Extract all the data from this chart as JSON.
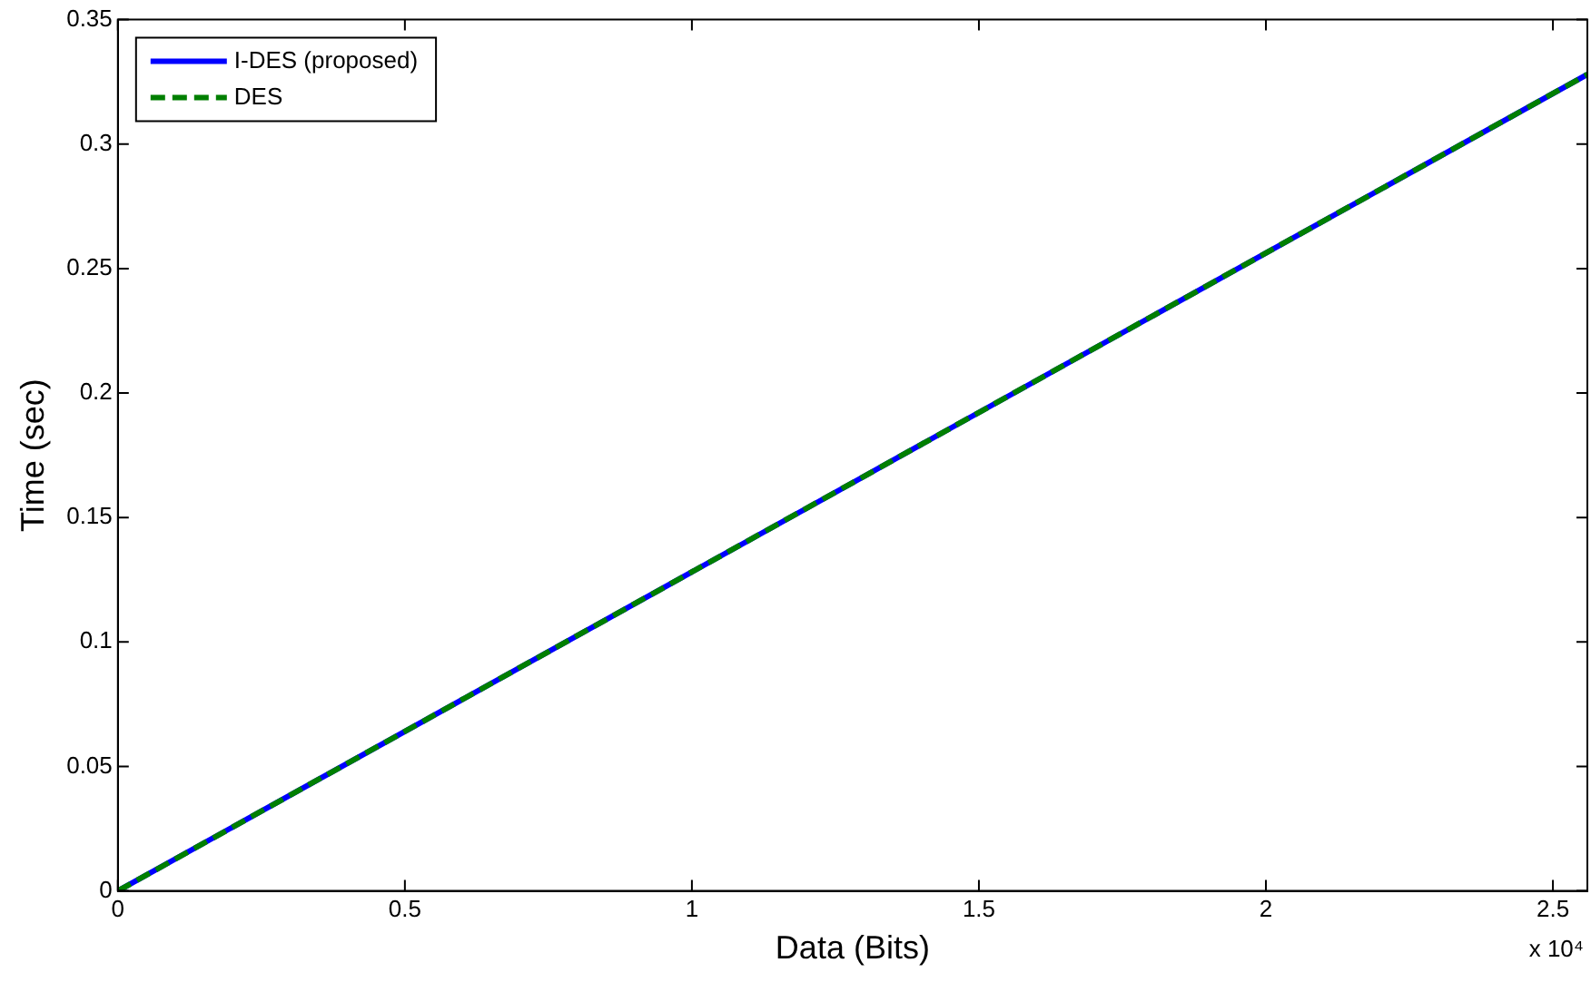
{
  "chart_data": {
    "type": "line",
    "xlabel": "Data (Bits)",
    "ylabel": "Time (sec)",
    "x": [
      0,
      1.28,
      2.56
    ],
    "series": [
      {
        "name": "I-DES (proposed)",
        "color": "#0000ff",
        "values": [
          0,
          0.164,
          0.328
        ],
        "line_style": "solid"
      },
      {
        "name": "DES",
        "color": "#007f00",
        "values": [
          0,
          0.164,
          0.328
        ],
        "line_style": "dashed"
      }
    ],
    "xlim": [
      0,
      2.56
    ],
    "xticks": [
      0,
      0.5,
      1,
      1.5,
      2,
      2.5
    ],
    "ylim": [
      0,
      0.35
    ],
    "yticks": [
      0,
      0.05,
      0.1,
      0.15,
      0.2,
      0.25,
      0.3,
      0.35
    ],
    "annotations": [
      "x 10⁴"
    ],
    "grid": false,
    "legend": "top left",
    "marker": "none"
  }
}
